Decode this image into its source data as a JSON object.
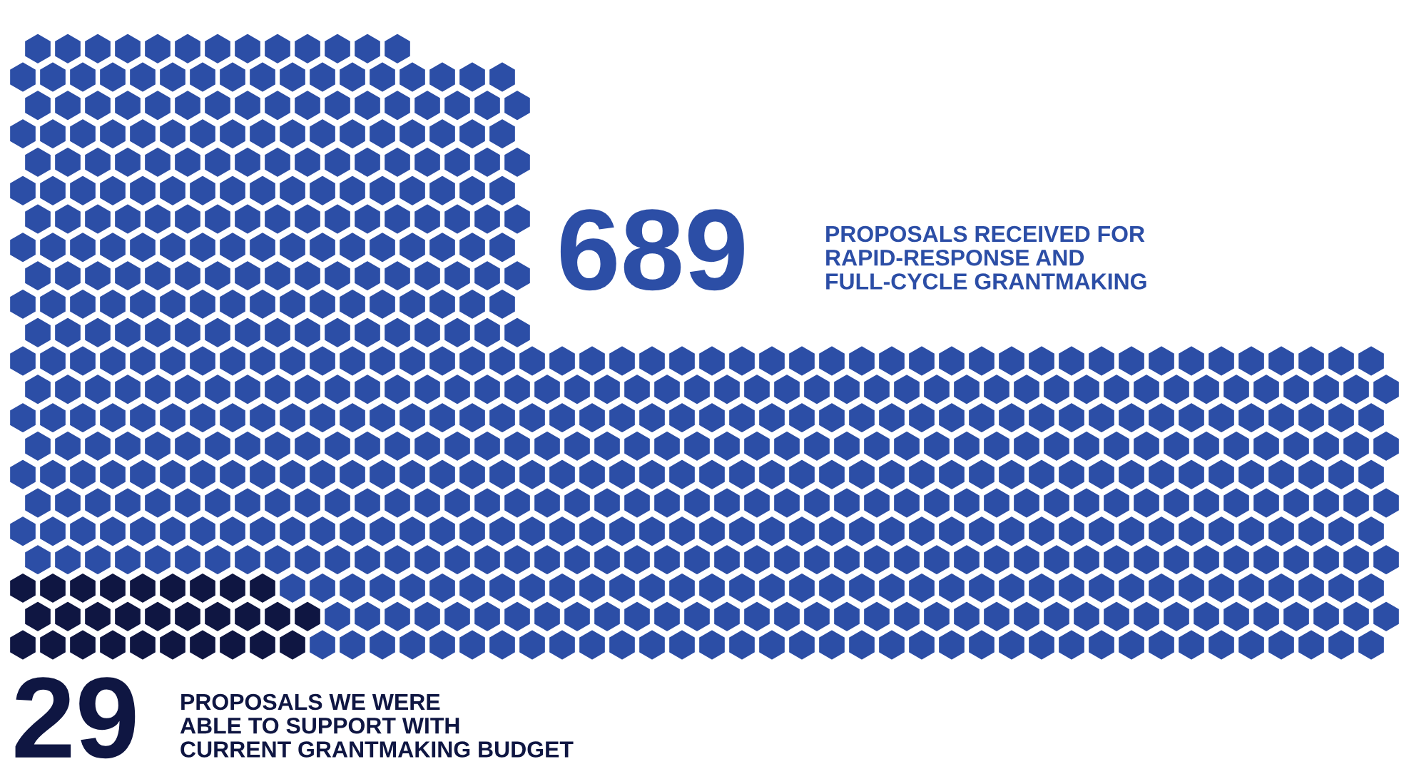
{
  "chart_data": {
    "type": "other",
    "categories": [
      "PROPOSALS RECEIVED FOR\nRAPID-RESPONSE AND\nFULL-CYCLE GRANTMAKING",
      "PROPOSALS WE WERE\nABLE TO SUPPORT WITH\nCURRENT GRANTMAKING BUDGET"
    ],
    "values": [
      689,
      29
    ],
    "colors": [
      "#2c4ea6",
      "#0f1642"
    ],
    "data_labels": true
  }
}
